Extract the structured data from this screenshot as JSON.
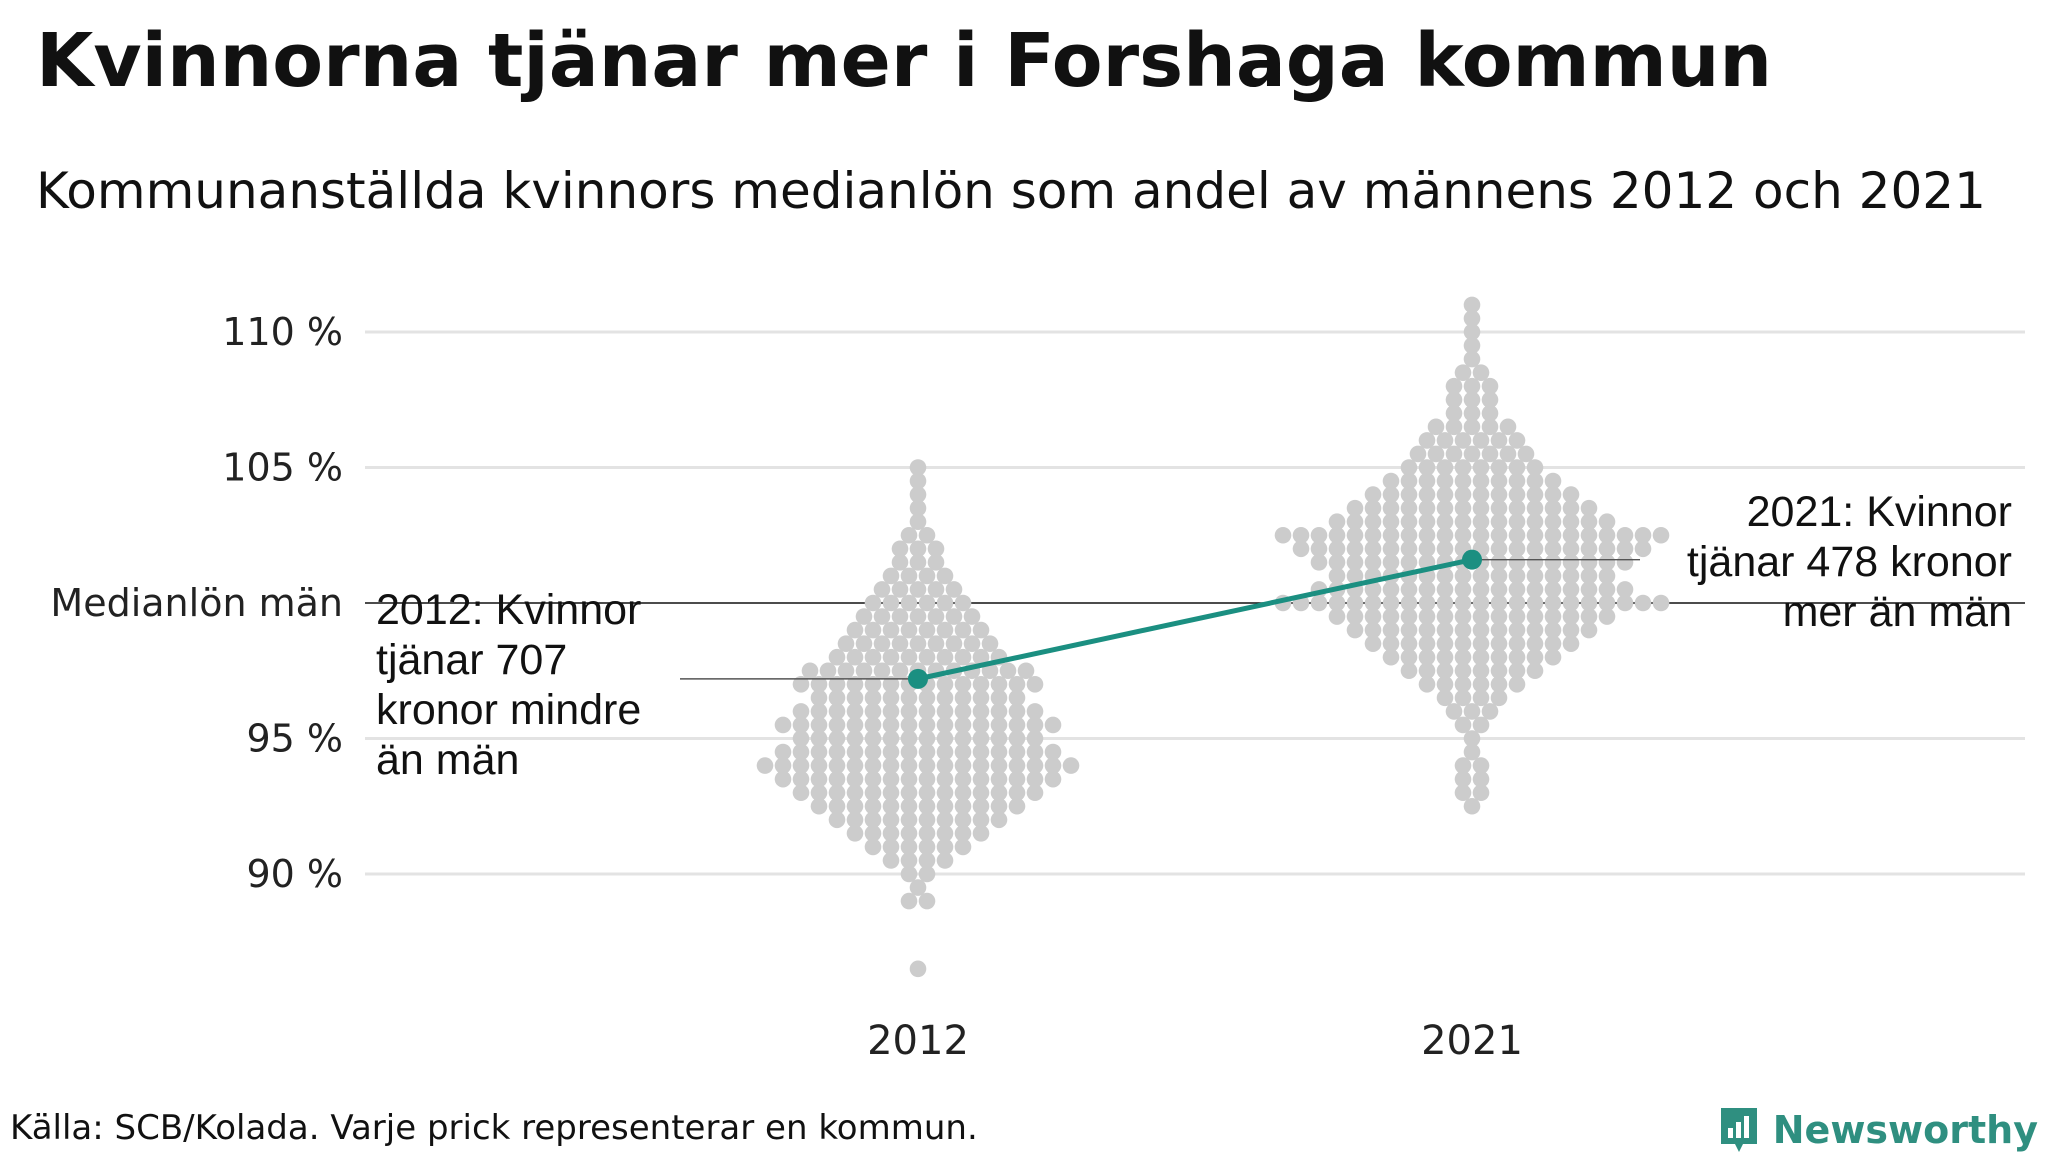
{
  "header": {
    "title": "Kvinnorna tjänar mer i Forshaga kommun",
    "subtitle": "Kommunanställda kvinnors medianlön som andel av männens 2012 och 2021"
  },
  "footer": {
    "source": "Källa: SCB/Kolada. Varje prick representerar en kommun.",
    "brand": "Newsworthy"
  },
  "colors": {
    "highlight": "#1b8f81",
    "dots": "#cccccc",
    "grid": "#e3e3e3",
    "brand": "#2f8f80"
  },
  "chart_data": {
    "type": "scatter",
    "title": "Kvinnorna tjänar mer i Forshaga kommun",
    "subtitle": "Kommunanställda kvinnors medianlön som andel av männens 2012 och 2021",
    "categories": [
      "2012",
      "2021"
    ],
    "y_ticks": [
      {
        "value": 90,
        "label": "90 %"
      },
      {
        "value": 95,
        "label": "95 %"
      },
      {
        "value": 105,
        "label": "105 %"
      },
      {
        "value": 110,
        "label": "110 %"
      }
    ],
    "reference_line": {
      "value": 100,
      "label": "Medianlön män"
    },
    "ylim": [
      85,
      113
    ],
    "grid": true,
    "highlight": {
      "name": "Forshaga",
      "points": [
        {
          "x": "2012",
          "y": 97.2
        },
        {
          "x": "2021",
          "y": 101.6
        }
      ]
    },
    "annotations": [
      {
        "year": "2012",
        "lines": [
          "2012: Kvinnor",
          "tjänar 707",
          "kronor mindre",
          "än män"
        ]
      },
      {
        "year": "2021",
        "lines": [
          "2021: Kvinnor",
          "tjänar 478 kronor",
          "mer än män"
        ]
      }
    ],
    "beeswarm": [
      {
        "year": "2012",
        "bins": [
          {
            "y": 86.5,
            "n": 1
          },
          {
            "y": 89.0,
            "n": 2
          },
          {
            "y": 89.5,
            "n": 1
          },
          {
            "y": 90.0,
            "n": 2
          },
          {
            "y": 90.5,
            "n": 4
          },
          {
            "y": 91.0,
            "n": 6
          },
          {
            "y": 91.5,
            "n": 8
          },
          {
            "y": 92.0,
            "n": 10
          },
          {
            "y": 92.5,
            "n": 12
          },
          {
            "y": 93.0,
            "n": 14
          },
          {
            "y": 93.5,
            "n": 16
          },
          {
            "y": 94.0,
            "n": 18
          },
          {
            "y": 94.5,
            "n": 16
          },
          {
            "y": 95.0,
            "n": 14
          },
          {
            "y": 95.5,
            "n": 16
          },
          {
            "y": 96.0,
            "n": 14
          },
          {
            "y": 96.5,
            "n": 12
          },
          {
            "y": 97.0,
            "n": 14
          },
          {
            "y": 97.5,
            "n": 13
          },
          {
            "y": 98.0,
            "n": 10
          },
          {
            "y": 98.5,
            "n": 9
          },
          {
            "y": 99.0,
            "n": 8
          },
          {
            "y": 99.5,
            "n": 7
          },
          {
            "y": 100.0,
            "n": 6
          },
          {
            "y": 100.5,
            "n": 5
          },
          {
            "y": 101.0,
            "n": 4
          },
          {
            "y": 101.5,
            "n": 3
          },
          {
            "y": 102.0,
            "n": 3
          },
          {
            "y": 102.5,
            "n": 2
          },
          {
            "y": 103.0,
            "n": 1
          },
          {
            "y": 103.5,
            "n": 1
          },
          {
            "y": 104.0,
            "n": 1
          },
          {
            "y": 104.5,
            "n": 1
          },
          {
            "y": 105.0,
            "n": 1
          }
        ]
      },
      {
        "year": "2021",
        "bins": [
          {
            "y": 92.5,
            "n": 1
          },
          {
            "y": 93.0,
            "n": 2
          },
          {
            "y": 93.5,
            "n": 2
          },
          {
            "y": 94.0,
            "n": 2
          },
          {
            "y": 94.5,
            "n": 1
          },
          {
            "y": 95.0,
            "n": 1
          },
          {
            "y": 95.5,
            "n": 2
          },
          {
            "y": 96.0,
            "n": 3
          },
          {
            "y": 96.5,
            "n": 4
          },
          {
            "y": 97.0,
            "n": 6
          },
          {
            "y": 97.5,
            "n": 8
          },
          {
            "y": 98.0,
            "n": 10
          },
          {
            "y": 98.5,
            "n": 12
          },
          {
            "y": 99.0,
            "n": 14
          },
          {
            "y": 99.5,
            "n": 16
          },
          {
            "y": 100.0,
            "n": 22
          },
          {
            "y": 100.5,
            "n": 18
          },
          {
            "y": 101.0,
            "n": 16
          },
          {
            "y": 101.5,
            "n": 18
          },
          {
            "y": 102.0,
            "n": 20
          },
          {
            "y": 102.5,
            "n": 22
          },
          {
            "y": 103.0,
            "n": 16
          },
          {
            "y": 103.5,
            "n": 14
          },
          {
            "y": 104.0,
            "n": 12
          },
          {
            "y": 104.5,
            "n": 10
          },
          {
            "y": 105.0,
            "n": 8
          },
          {
            "y": 105.5,
            "n": 7
          },
          {
            "y": 106.0,
            "n": 6
          },
          {
            "y": 106.5,
            "n": 5
          },
          {
            "y": 107.0,
            "n": 3
          },
          {
            "y": 107.5,
            "n": 3
          },
          {
            "y": 108.0,
            "n": 3
          },
          {
            "y": 108.5,
            "n": 2
          },
          {
            "y": 109.0,
            "n": 1
          },
          {
            "y": 109.5,
            "n": 1
          },
          {
            "y": 110.0,
            "n": 1
          },
          {
            "y": 110.5,
            "n": 1
          },
          {
            "y": 111.0,
            "n": 1
          }
        ]
      }
    ]
  }
}
